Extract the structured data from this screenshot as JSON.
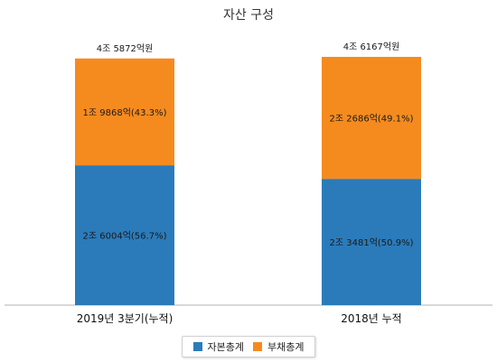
{
  "chart_data": {
    "type": "bar",
    "stacked": true,
    "title": "자산 구성",
    "categories": [
      "2019년 3분기(누적)",
      "2018년 누적"
    ],
    "ylim": [
      0,
      4.6167
    ],
    "unit": "조원",
    "totals": [
      4.5872,
      4.6167
    ],
    "total_labels": [
      "4조 5872억원",
      "4조 6167억원"
    ],
    "series": [
      {
        "name": "자본총계",
        "color": "#2b7bba",
        "values": [
          2.6004,
          2.3481
        ],
        "labels": [
          "2조 6004억(56.7%)",
          "2조 3481억(50.9%)"
        ]
      },
      {
        "name": "부채총계",
        "color": "#f58b1f",
        "values": [
          1.9868,
          2.2686
        ],
        "labels": [
          "1조 9868억(43.3%)",
          "2조 2686억(49.1%)"
        ]
      }
    ],
    "legend_position": "bottom",
    "grid": false
  }
}
